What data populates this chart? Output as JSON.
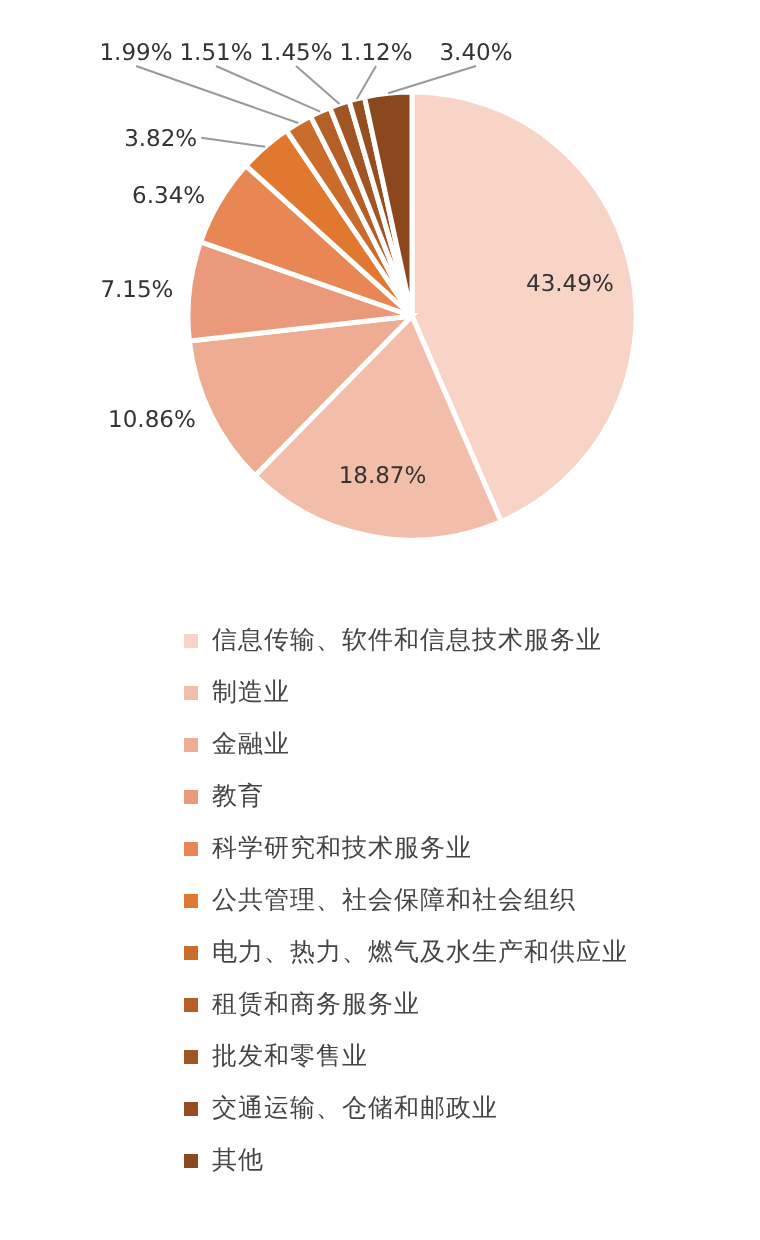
{
  "chart_data": {
    "type": "pie",
    "categories": [
      "信息传输、软件和信息技术服务业",
      "制造业",
      "金融业",
      "教育",
      "科学研究和技术服务业",
      "公共管理、社会保障和社会组织",
      "电力、热力、燃气及水生产和供应业",
      "租赁和商务服务业",
      "批发和零售业",
      "交通运输、仓储和邮政业",
      "其他"
    ],
    "values": [
      43.49,
      18.87,
      10.86,
      7.15,
      6.34,
      3.82,
      1.99,
      1.51,
      1.45,
      1.12,
      3.4
    ],
    "value_labels": [
      "43.49%",
      "18.87%",
      "10.86%",
      "7.15%",
      "6.34%",
      "3.82%",
      "1.99%",
      "1.51%",
      "1.45%",
      "1.12%",
      "3.40%"
    ],
    "colors": [
      "#f7d4c6",
      "#f2bea9",
      "#eeac93",
      "#ea9a7a",
      "#e88654",
      "#e07830",
      "#c96c2c",
      "#b55f27",
      "#a25524",
      "#964e20",
      "#8a481c"
    ],
    "legend": "bottom"
  }
}
